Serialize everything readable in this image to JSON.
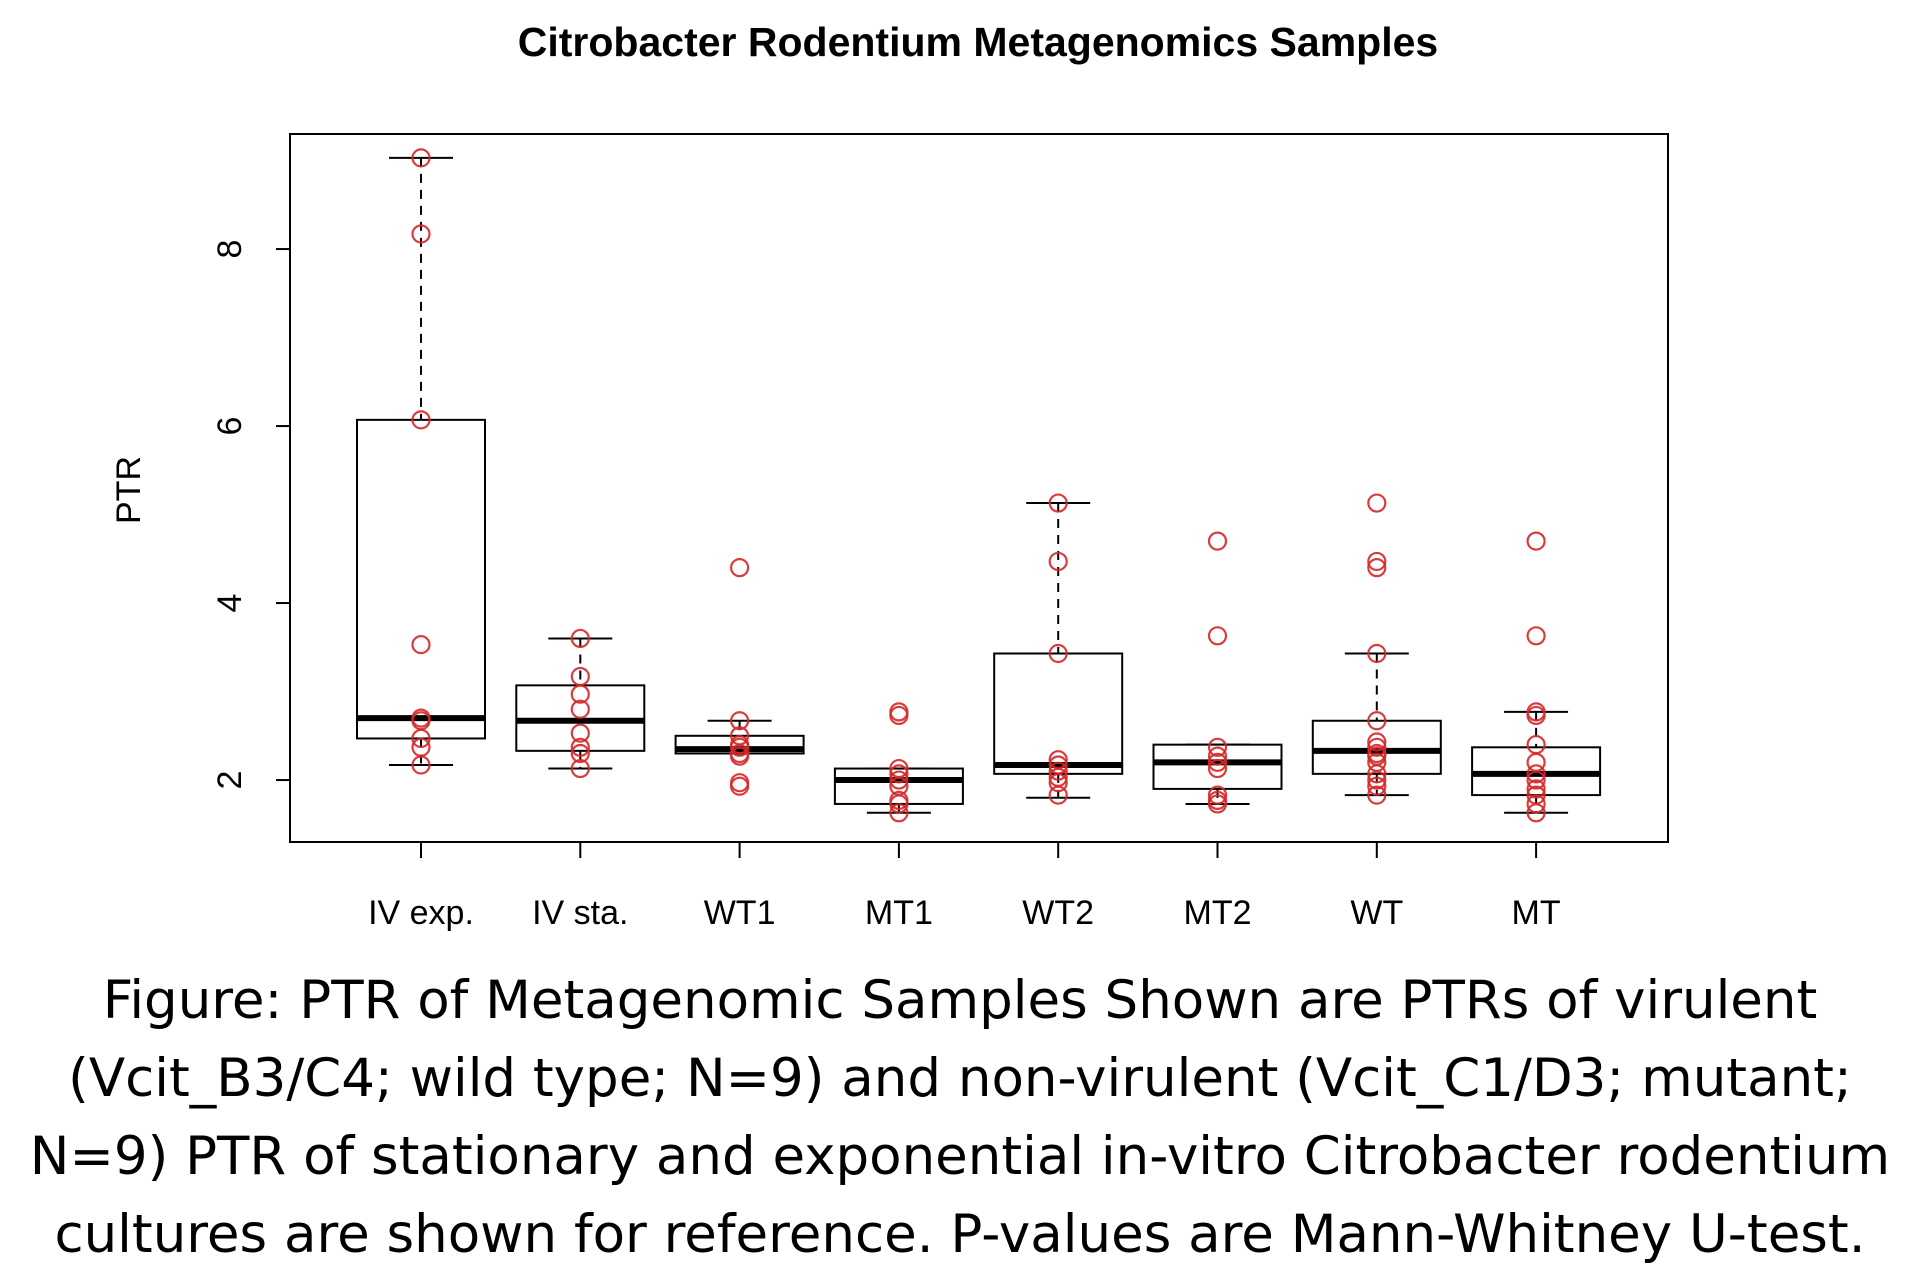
{
  "chart_data": {
    "type": "boxplot",
    "title": "Citrobacter Rodentium Metagenomics Samples",
    "xlabel": "",
    "ylabel": "PTR",
    "ylim": [
      1.3,
      9.3
    ],
    "yticks": [
      2,
      4,
      6,
      8
    ],
    "categories": [
      "IV exp.",
      "IV sta.",
      "WT1",
      "MT1",
      "WT2",
      "MT2",
      "WT",
      "MT"
    ],
    "boxes": [
      {
        "whisker_low": 2.17,
        "q1": 2.47,
        "median": 2.7,
        "q3": 6.07,
        "whisker_high": 9.03
      },
      {
        "whisker_low": 2.13,
        "q1": 2.33,
        "median": 2.67,
        "q3": 3.07,
        "whisker_high": 3.6
      },
      {
        "whisker_low": 2.3,
        "q1": 2.3,
        "median": 2.35,
        "q3": 2.5,
        "whisker_high": 2.67
      },
      {
        "whisker_low": 1.63,
        "q1": 1.73,
        "median": 2.0,
        "q3": 2.13,
        "whisker_high": 2.13
      },
      {
        "whisker_low": 1.8,
        "q1": 2.07,
        "median": 2.17,
        "q3": 3.43,
        "whisker_high": 5.13
      },
      {
        "whisker_low": 1.73,
        "q1": 1.9,
        "median": 2.2,
        "q3": 2.4,
        "whisker_high": 2.4
      },
      {
        "whisker_low": 1.83,
        "q1": 2.07,
        "median": 2.33,
        "q3": 2.67,
        "whisker_high": 3.43
      },
      {
        "whisker_low": 1.63,
        "q1": 1.83,
        "median": 2.07,
        "q3": 2.37,
        "whisker_high": 2.77
      }
    ],
    "points": [
      [
        9.03,
        8.17,
        6.07,
        3.53,
        2.7,
        2.67,
        2.47,
        2.37,
        2.17
      ],
      [
        3.6,
        3.17,
        2.97,
        2.8,
        2.53,
        2.37,
        2.3,
        2.13
      ],
      [
        4.4,
        2.67,
        2.5,
        2.4,
        2.37,
        2.3,
        2.27,
        1.97,
        1.93
      ],
      [
        2.77,
        2.73,
        2.13,
        2.07,
        2.0,
        1.93,
        1.77,
        1.73,
        1.63
      ],
      [
        5.13,
        4.47,
        3.43,
        2.23,
        2.17,
        2.1,
        2.03,
        1.97,
        1.83
      ],
      [
        4.7,
        3.63,
        2.37,
        2.27,
        2.2,
        2.13,
        1.83,
        1.77,
        1.73
      ],
      [
        5.13,
        4.47,
        4.4,
        3.43,
        2.67,
        2.43,
        2.37,
        2.3,
        2.27,
        2.2,
        2.07,
        2.0,
        1.93,
        1.83
      ],
      [
        4.7,
        3.63,
        2.77,
        2.73,
        2.4,
        2.2,
        2.07,
        2.0,
        1.9,
        1.83,
        1.73,
        1.63
      ]
    ],
    "grid": false,
    "legend": "none",
    "colors": {
      "points": "#d62728",
      "box": "#000000",
      "median": "#000000"
    }
  },
  "caption": {
    "lines": [
      "Figure: PTR of Metagenomic Samples  Shown are PTRs of virulent",
      "(Vcit_B3/C4; wild type; N=9) and non-virulent (Vcit_C1/D3; mutant;",
      "N=9) PTR of stationary and exponential in-vitro Citrobacter rodentium",
      "cultures are shown for reference. P-values are Mann-Whitney U-test."
    ]
  }
}
